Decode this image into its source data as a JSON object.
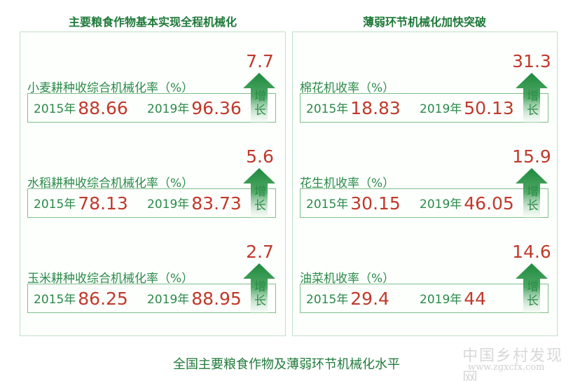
{
  "left": {
    "title": "主要粮食作物基本实现全程机械化",
    "items": [
      {
        "label": "小麦耕种收综合机械化率（%）",
        "y1": "2015年",
        "v1": "88.66",
        "y2": "2019年",
        "v2": "96.36",
        "increase": "7.7",
        "arrow_text": "增长"
      },
      {
        "label": "水稻耕种收综合机械化率（%）",
        "y1": "2015年",
        "v1": "78.13",
        "y2": "2019年",
        "v2": "83.73",
        "increase": "5.6",
        "arrow_text": "增长"
      },
      {
        "label": "玉米耕种收综合机械化率（%）",
        "y1": "2015年",
        "v1": "86.25",
        "y2": "2019年",
        "v2": "88.95",
        "increase": "2.7",
        "arrow_text": "增长"
      }
    ]
  },
  "right": {
    "title": "薄弱环节机械化加快突破",
    "items": [
      {
        "label": "棉花机收率（%）",
        "y1": "2015年",
        "v1": "18.83",
        "y2": "2019年",
        "v2": "50.13",
        "increase": "31.3",
        "arrow_text": "增长"
      },
      {
        "label": "花生机收率（%）",
        "y1": "2015年",
        "v1": "30.15",
        "y2": "2019年",
        "v2": "46.05",
        "increase": "15.9",
        "arrow_text": "增长"
      },
      {
        "label": "油菜机收率（%）",
        "y1": "2015年",
        "v1": "29.4",
        "y2": "2019年",
        "v2": "44",
        "increase": "14.6",
        "arrow_text": "增长"
      }
    ]
  },
  "caption": "全国主要粮食作物及薄弱环节机械化水平",
  "watermark": {
    "name": "中国乡村发现网",
    "url": "www.zgxcfx.com"
  },
  "colors": {
    "green": "#2a8a48",
    "red": "#c0392b",
    "arrow": "#1e8a3e"
  }
}
